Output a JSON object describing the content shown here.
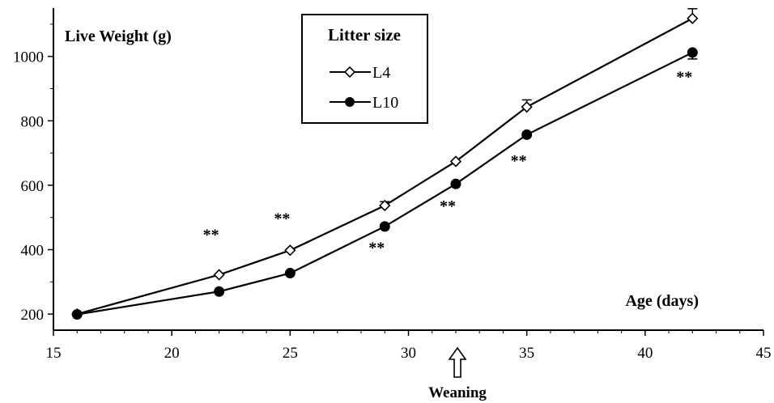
{
  "chart_data": {
    "type": "line",
    "ylabel": "Live Weight (g)",
    "xlabel": "Age (days)",
    "xlim": [
      15,
      45
    ],
    "ylim": [
      150,
      1150
    ],
    "xticks": [
      15,
      20,
      25,
      30,
      35,
      40,
      45
    ],
    "yticks": [
      200,
      400,
      600,
      800,
      1000
    ],
    "legend": {
      "title": "Litter size",
      "placement": "top-center"
    },
    "series": [
      {
        "name": "L4",
        "marker": "open-diamond",
        "x": [
          16,
          22,
          25,
          29,
          32,
          35,
          42
        ],
        "y": [
          200,
          322,
          398,
          537,
          674,
          843,
          1118
        ],
        "error_up": [
          0,
          0,
          0,
          12,
          0,
          22,
          30
        ]
      },
      {
        "name": "L10",
        "marker": "filled-circle",
        "x": [
          16,
          22,
          25,
          29,
          32,
          35,
          42
        ],
        "y": [
          199,
          270,
          327,
          472,
          604,
          757,
          1012
        ],
        "error_down": [
          0,
          0,
          0,
          0,
          0,
          0,
          20
        ]
      }
    ],
    "annotations": [
      {
        "text": "**",
        "x": 22,
        "y": 280,
        "side": "above"
      },
      {
        "text": "**",
        "x": 25,
        "y": 330,
        "side": "above"
      },
      {
        "text": "**",
        "x": 29,
        "y": 490,
        "side": "below"
      },
      {
        "text": "**",
        "x": 32,
        "y": 620,
        "side": "below"
      },
      {
        "text": "**",
        "x": 35,
        "y": 760,
        "side": "below"
      },
      {
        "text": "**",
        "x": 42,
        "y": 1020,
        "side": "below"
      }
    ],
    "weaning": {
      "label": "Weaning",
      "x": 32
    }
  }
}
